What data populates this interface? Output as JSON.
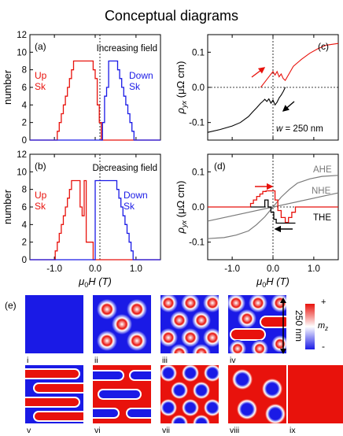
{
  "title": "Conceptual diagrams",
  "panels": {
    "a": {
      "label": "(a)",
      "note": "Increasing field",
      "ylabel": "number",
      "up_label": [
        "Up",
        "Sk"
      ],
      "down_label": [
        "Down",
        "Sk"
      ],
      "ylim": [
        0,
        12
      ],
      "yticks": [
        "0",
        "2",
        "4",
        "6",
        "8",
        "10",
        "12"
      ]
    },
    "b": {
      "label": "(b)",
      "note": "Decreasing field",
      "ylabel": "number",
      "up_label": [
        "Up",
        "Sk"
      ],
      "down_label": [
        "Down",
        "Sk"
      ],
      "ylim": [
        0,
        12
      ],
      "yticks": [
        "0",
        "2",
        "4",
        "6",
        "8",
        "10",
        "12"
      ],
      "xticks": [
        "-1.0",
        "0.0",
        "1.0"
      ],
      "xlabel_base": "H (T)",
      "xlabel_mu": "μ",
      "xlabel_sub": "0"
    },
    "c": {
      "label": "(c)",
      "note_prefix": "w",
      "note_suffix": " = 250 nm",
      "ylabel_main": "ρ",
      "ylabel_sub": "yx",
      "ylabel_unit": " (μΩ cm)",
      "yticks": [
        "-0.1",
        "0.0",
        "0.1"
      ]
    },
    "d": {
      "label": "(d)",
      "ylabel_main": "ρ",
      "ylabel_sub": "yx",
      "ylabel_unit": " (μΩ cm)",
      "yticks": [
        "-0.1",
        "0.0",
        "0.1"
      ],
      "xticks": [
        "-1.0",
        "0.0",
        "1.0"
      ],
      "xlabel_base": "H (T)",
      "xlabel_mu": "μ",
      "xlabel_sub": "0",
      "legend": [
        "AHE",
        "NHE",
        "THE"
      ]
    },
    "e": {
      "label": "(e)",
      "scale_label": "250 nm",
      "colorbar_top": "+",
      "colorbar_bottom": "-",
      "colorbar_label_main": "m",
      "colorbar_label_sub": "z",
      "tile_labels": [
        "i",
        "ii",
        "iii",
        "iv",
        "v",
        "vi",
        "vii",
        "viii",
        "ix"
      ]
    }
  },
  "colors": {
    "up": "#e8120c",
    "down": "#1a1ae6",
    "black": "#000000",
    "gray": "#7a7a7a",
    "white_core": "#ffffff"
  },
  "chart_data": [
    {
      "panel": "a",
      "type": "line",
      "title": "",
      "xlim": [
        -1.6,
        1.6
      ],
      "ylim": [
        0,
        12
      ],
      "series": [
        {
          "name": "Up Sk",
          "x": [
            -1.6,
            -0.93,
            -0.93,
            -0.88,
            -0.88,
            -0.83,
            -0.83,
            -0.78,
            -0.78,
            -0.73,
            -0.73,
            -0.68,
            -0.68,
            -0.63,
            -0.63,
            -0.58,
            -0.58,
            -0.53,
            -0.53,
            -0.05,
            -0.05,
            0.0,
            0.0,
            0.05,
            0.05,
            0.1,
            0.1,
            0.15,
            0.15,
            1.6
          ],
          "y": [
            0,
            0,
            1,
            1,
            2,
            2,
            3,
            3,
            4,
            4,
            5,
            5,
            6,
            6,
            7,
            7,
            8,
            8,
            9,
            9,
            8,
            8,
            7,
            7,
            4,
            4,
            2,
            2,
            0,
            0
          ]
        },
        {
          "name": "Down Sk",
          "x": [
            -1.6,
            0.18,
            0.18,
            0.23,
            0.23,
            0.28,
            0.28,
            0.33,
            0.33,
            0.37,
            0.37,
            0.55,
            0.55,
            0.6,
            0.6,
            0.65,
            0.65,
            0.7,
            0.7,
            0.75,
            0.75,
            0.8,
            0.8,
            0.85,
            0.85,
            0.9,
            0.9,
            0.95,
            0.95,
            1.6
          ],
          "y": [
            0,
            0,
            2,
            2,
            5,
            5,
            6,
            6,
            9,
            9,
            9,
            9,
            8,
            8,
            7,
            7,
            6,
            6,
            5,
            5,
            4,
            4,
            3,
            3,
            2,
            2,
            1,
            1,
            0,
            0
          ]
        }
      ]
    },
    {
      "panel": "b",
      "type": "line",
      "title": "",
      "xlim": [
        -1.6,
        1.6
      ],
      "ylim": [
        0,
        12
      ],
      "series": [
        {
          "name": "Up Sk",
          "x": [
            -1.6,
            -0.98,
            -0.98,
            -0.93,
            -0.93,
            -0.88,
            -0.88,
            -0.83,
            -0.83,
            -0.78,
            -0.78,
            -0.73,
            -0.73,
            -0.68,
            -0.68,
            -0.63,
            -0.63,
            -0.58,
            -0.58,
            -0.53,
            -0.53,
            -0.37,
            -0.37,
            -0.32,
            -0.32,
            -0.27,
            -0.27,
            -0.22,
            -0.22,
            -0.14,
            -0.14,
            -0.05,
            -0.05,
            1.6
          ],
          "y": [
            0,
            0,
            1,
            1,
            2,
            2,
            3,
            3,
            4,
            4,
            5,
            5,
            6,
            6,
            7,
            7,
            8,
            8,
            9,
            9,
            9,
            9,
            6,
            6,
            5,
            5,
            9,
            9,
            2,
            2,
            2,
            2,
            0,
            0
          ]
        },
        {
          "name": "Down Sk",
          "x": [
            -1.6,
            0.0,
            0.0,
            0.05,
            0.05,
            0.53,
            0.53,
            0.58,
            0.58,
            0.63,
            0.63,
            0.68,
            0.68,
            0.73,
            0.73,
            0.78,
            0.78,
            0.83,
            0.83,
            0.88,
            0.88,
            0.93,
            0.93,
            0.98,
            0.98,
            1.6
          ],
          "y": [
            0,
            0,
            9,
            9,
            9,
            9,
            8,
            8,
            7,
            7,
            6,
            6,
            5,
            5,
            4,
            4,
            3,
            3,
            2,
            2,
            1,
            1,
            0,
            0,
            0,
            0
          ]
        }
      ]
    },
    {
      "panel": "c",
      "type": "line",
      "title": "",
      "xlim": [
        -1.6,
        1.6
      ],
      "ylim": [
        -0.15,
        0.15
      ],
      "series": [
        {
          "name": "",
          "x": [
            -1.6,
            -1.3,
            -1.0,
            -0.8,
            -0.6,
            -0.5,
            -0.4,
            -0.3,
            -0.25,
            -0.2,
            -0.15,
            -0.1,
            -0.05,
            0.0,
            0.05,
            0.1,
            0.15,
            0.2,
            0.25,
            0.3
          ],
          "y": [
            -0.128,
            -0.12,
            -0.11,
            -0.1,
            -0.083,
            -0.07,
            -0.058,
            -0.045,
            -0.04,
            -0.034,
            -0.04,
            -0.033,
            -0.045,
            -0.036,
            -0.05,
            -0.042,
            -0.03,
            -0.022,
            -0.012,
            0.0
          ]
        },
        {
          "name": "",
          "x": [
            -0.3,
            -0.2,
            -0.1,
            0.0,
            0.05,
            0.1,
            0.15,
            0.2,
            0.25,
            0.3,
            0.4,
            0.5,
            0.7,
            0.9,
            1.1,
            1.3,
            1.6
          ],
          "y": [
            0.0,
            0.015,
            0.03,
            0.045,
            0.035,
            0.045,
            0.03,
            0.038,
            0.025,
            0.02,
            0.04,
            0.06,
            0.08,
            0.097,
            0.11,
            0.12,
            0.125
          ]
        }
      ]
    },
    {
      "panel": "d",
      "type": "line",
      "title": "",
      "xlim": [
        -1.6,
        1.6
      ],
      "ylim": [
        -0.15,
        0.15
      ],
      "series": [
        {
          "name": "AHE",
          "x": [
            -1.6,
            -1.2,
            -0.9,
            -0.6,
            -0.4,
            -0.2,
            0.0,
            0.2,
            0.4,
            0.6,
            0.9,
            1.2,
            1.6
          ],
          "y": [
            -0.09,
            -0.087,
            -0.08,
            -0.068,
            -0.05,
            -0.028,
            0.0,
            0.028,
            0.05,
            0.068,
            0.08,
            0.087,
            0.09
          ]
        },
        {
          "name": "NHE",
          "x": [
            -1.6,
            1.6
          ],
          "y": [
            -0.04,
            0.04
          ]
        },
        {
          "name": "THE",
          "x": [
            -1.6,
            -0.55,
            -0.55,
            -0.48,
            -0.48,
            -0.4,
            -0.4,
            -0.32,
            -0.32,
            -0.25,
            -0.25,
            -0.17,
            -0.17,
            0.05,
            0.05,
            0.12,
            0.12,
            0.2,
            0.2,
            0.3,
            0.3,
            0.38,
            0.38,
            0.46,
            0.46,
            0.55,
            0.55,
            1.6
          ],
          "y": [
            0,
            0,
            0.01,
            0.01,
            0.02,
            0.02,
            0.03,
            0.03,
            0.037,
            0.037,
            0.044,
            0.044,
            0.046,
            0.046,
            0.02,
            0.02,
            -0.01,
            -0.01,
            -0.03,
            -0.03,
            -0.044,
            -0.044,
            -0.03,
            -0.03,
            -0.015,
            -0.015,
            0,
            0
          ]
        },
        {
          "name": "",
          "x": [
            -0.55,
            -0.2,
            -0.2,
            -0.12,
            -0.12,
            -0.05,
            -0.05,
            0.02,
            0.02,
            0.08,
            0.08,
            0.55
          ],
          "y": [
            0,
            0,
            0.02,
            0.02,
            0.0,
            0.0,
            -0.015,
            -0.015,
            -0.035,
            -0.035,
            -0.046,
            -0.046
          ]
        }
      ]
    }
  ]
}
